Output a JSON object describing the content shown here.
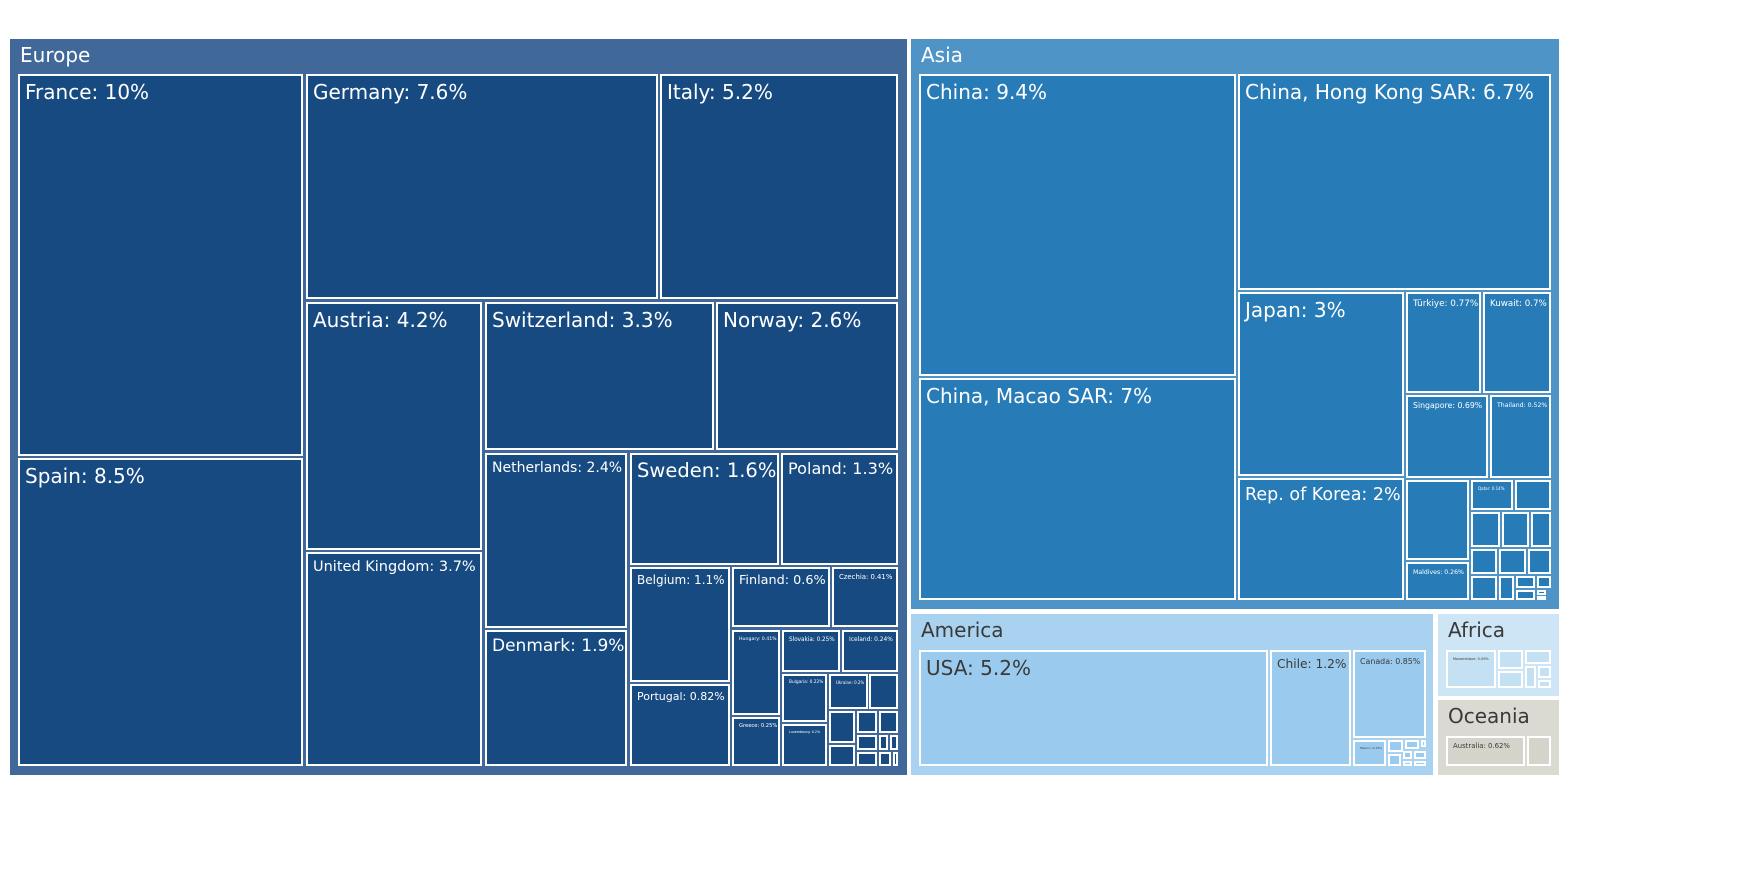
{
  "chart_data": {
    "type": "treemap",
    "title": "",
    "value_format": "percent of total",
    "groups": [
      {
        "name": "Europe",
        "color": "#406899",
        "tile_color": "#174a81",
        "text_color": "#ffffff",
        "items": [
          {
            "label": "France: 10%",
            "value": 10
          },
          {
            "label": "Germany: 7.6%",
            "value": 7.6
          },
          {
            "label": "Italy: 5.2%",
            "value": 5.2
          },
          {
            "label": "Spain: 8.5%",
            "value": 8.5
          },
          {
            "label": "Austria: 4.2%",
            "value": 4.2
          },
          {
            "label": "Switzerland: 3.3%",
            "value": 3.3
          },
          {
            "label": "Norway: 2.6%",
            "value": 2.6
          },
          {
            "label": "United Kingdom: 3.7%",
            "value": 3.7
          },
          {
            "label": "Netherlands: 2.4%",
            "value": 2.4
          },
          {
            "label": "Sweden: 1.6%",
            "value": 1.6
          },
          {
            "label": "Poland: 1.3%",
            "value": 1.3
          },
          {
            "label": "Denmark: 1.9%",
            "value": 1.9
          },
          {
            "label": "Belgium: 1.1%",
            "value": 1.1
          },
          {
            "label": "Finland: 0.6%",
            "value": 0.6
          },
          {
            "label": "Czechia: 0.41%",
            "value": 0.41
          },
          {
            "label": "Hungary: 0.41%",
            "value": 0.41
          },
          {
            "label": "Slovakia: 0.25%",
            "value": 0.25
          },
          {
            "label": "Iceland: 0.24%",
            "value": 0.24
          },
          {
            "label": "Portugal: 0.82%",
            "value": 0.82
          },
          {
            "label": "Bulgaria: 0.22%",
            "value": 0.22
          },
          {
            "label": "Ukraine: 0.2%",
            "value": 0.2
          },
          {
            "label": "",
            "value": 0.18
          },
          {
            "label": "Greece: 0.25%",
            "value": 0.25
          },
          {
            "label": "Luxembourg: 0.2%",
            "value": 0.2
          },
          {
            "label": "",
            "value": 0.12
          },
          {
            "label": "",
            "value": 0.1
          },
          {
            "label": "",
            "value": 0.06
          },
          {
            "label": "",
            "value": 0.08
          },
          {
            "label": "",
            "value": 0.06
          },
          {
            "label": "",
            "value": 0.04
          },
          {
            "label": "",
            "value": 0.03
          },
          {
            "label": "",
            "value": 0.05
          },
          {
            "label": "",
            "value": 0.04
          },
          {
            "label": "",
            "value": 0.02
          }
        ]
      },
      {
        "name": "Asia",
        "color": "#4f94c7",
        "tile_color": "#277bb6",
        "text_color": "#ffffff",
        "items": [
          {
            "label": "China: 9.4%",
            "value": 9.4
          },
          {
            "label": "China, Hong Kong SAR: 6.7%",
            "value": 6.7
          },
          {
            "label": "China, Macao SAR: 7%",
            "value": 7
          },
          {
            "label": "Japan: 3%",
            "value": 3
          },
          {
            "label": "Türkiye: 0.77%",
            "value": 0.77
          },
          {
            "label": "Kuwait: 0.7%",
            "value": 0.7
          },
          {
            "label": "Singapore: 0.69%",
            "value": 0.69
          },
          {
            "label": "Thailand: 0.52%",
            "value": 0.52
          },
          {
            "label": "Rep. of Korea: 2%",
            "value": 2
          },
          {
            "label": "",
            "value": 0.3
          },
          {
            "label": "Qatar: 0.14%",
            "value": 0.14
          },
          {
            "label": "",
            "value": 0.12
          },
          {
            "label": "",
            "value": 0.1
          },
          {
            "label": "",
            "value": 0.1
          },
          {
            "label": "",
            "value": 0.06
          },
          {
            "label": "",
            "value": 0.08
          },
          {
            "label": "",
            "value": 0.07
          },
          {
            "label": "",
            "value": 0.06
          },
          {
            "label": "Maldives: 0.26%",
            "value": 0.26
          },
          {
            "label": "",
            "value": 0.07
          },
          {
            "label": "",
            "value": 0.04
          },
          {
            "label": "",
            "value": 0.03
          },
          {
            "label": "",
            "value": 0.03
          },
          {
            "label": "",
            "value": 0.02
          },
          {
            "label": "",
            "value": 0.02
          },
          {
            "label": "",
            "value": 0.01
          }
        ]
      },
      {
        "name": "America",
        "color": "#a9d2f0",
        "tile_color": "#9acbee",
        "text_color": "#3a3a3a",
        "items": [
          {
            "label": "USA: 5.2%",
            "value": 5.2
          },
          {
            "label": "Chile: 1.2%",
            "value": 1.2
          },
          {
            "label": "Canada: 0.85%",
            "value": 0.85
          },
          {
            "label": "Mexico: 0.15%",
            "value": 0.15
          },
          {
            "label": "",
            "value": 0.05
          },
          {
            "label": "",
            "value": 0.04
          },
          {
            "label": "",
            "value": 0.03
          },
          {
            "label": "",
            "value": 0.02
          },
          {
            "label": "",
            "value": 0.02
          },
          {
            "label": "",
            "value": 0.02
          },
          {
            "label": "",
            "value": 0.01
          },
          {
            "label": "",
            "value": 0.01
          }
        ]
      },
      {
        "name": "Africa",
        "color": "#cde5f5",
        "tile_color": "#c4e0f3",
        "text_color": "#3a3a3a",
        "items": [
          {
            "label": "Mozambique: 0.09%",
            "value": 0.09
          },
          {
            "label": "",
            "value": 0.03
          },
          {
            "label": "",
            "value": 0.03
          },
          {
            "label": "",
            "value": 0.02
          },
          {
            "label": "",
            "value": 0.01
          },
          {
            "label": "",
            "value": 0.01
          },
          {
            "label": "",
            "value": 0.01
          }
        ]
      },
      {
        "name": "Oceania",
        "color": "#dad9d2",
        "tile_color": "#d5d3ca",
        "text_color": "#3a3a3a",
        "items": [
          {
            "label": "Australia: 0.62%",
            "value": 0.62
          },
          {
            "label": "",
            "value": 0.12
          }
        ]
      }
    ]
  }
}
